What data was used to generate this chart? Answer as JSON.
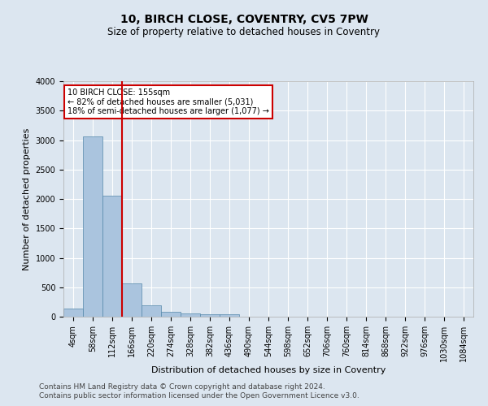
{
  "title": "10, BIRCH CLOSE, COVENTRY, CV5 7PW",
  "subtitle": "Size of property relative to detached houses in Coventry",
  "xlabel": "Distribution of detached houses by size in Coventry",
  "ylabel": "Number of detached properties",
  "bin_labels": [
    "4sqm",
    "58sqm",
    "112sqm",
    "166sqm",
    "220sqm",
    "274sqm",
    "328sqm",
    "382sqm",
    "436sqm",
    "490sqm",
    "544sqm",
    "598sqm",
    "652sqm",
    "706sqm",
    "760sqm",
    "814sqm",
    "868sqm",
    "922sqm",
    "976sqm",
    "1030sqm",
    "1084sqm"
  ],
  "bar_heights": [
    140,
    3060,
    2060,
    560,
    200,
    80,
    55,
    40,
    40,
    0,
    0,
    0,
    0,
    0,
    0,
    0,
    0,
    0,
    0,
    0,
    0
  ],
  "bar_color": "#aac4de",
  "bar_edge_color": "#5588aa",
  "vline_x": 3,
  "vline_color": "#cc0000",
  "annotation_text": "10 BIRCH CLOSE: 155sqm\n← 82% of detached houses are smaller (5,031)\n18% of semi-detached houses are larger (1,077) →",
  "annotation_box_color": "#ffffff",
  "annotation_box_edge": "#cc0000",
  "ylim": [
    0,
    4000
  ],
  "yticks": [
    0,
    500,
    1000,
    1500,
    2000,
    2500,
    3000,
    3500,
    4000
  ],
  "footer_line1": "Contains HM Land Registry data © Crown copyright and database right 2024.",
  "footer_line2": "Contains public sector information licensed under the Open Government Licence v3.0.",
  "bg_color": "#dce6f0",
  "plot_bg_color": "#dce6f0",
  "grid_color": "#ffffff",
  "title_fontsize": 10,
  "subtitle_fontsize": 8.5,
  "axis_label_fontsize": 8,
  "tick_fontsize": 7,
  "footer_fontsize": 6.5
}
